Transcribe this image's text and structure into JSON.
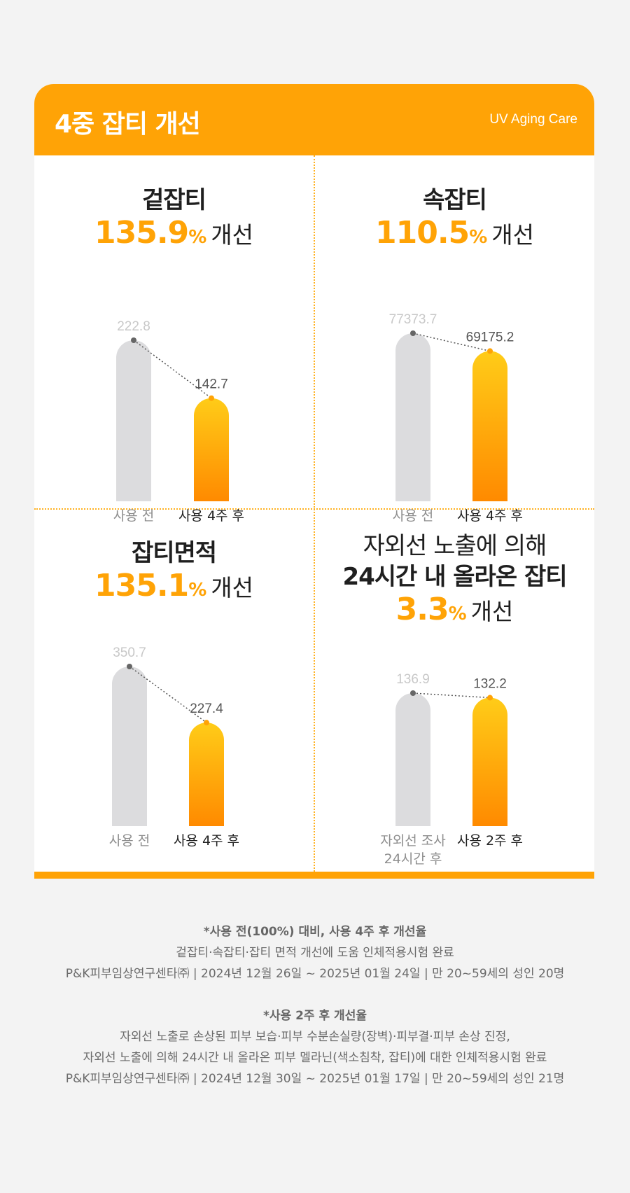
{
  "header": {
    "title": "4중 잡티 개선",
    "subtitle": "UV Aging Care"
  },
  "colors": {
    "accent": "#ffa306",
    "bar_before": "#dcdcde",
    "bar_after_top": "#ffcc18",
    "bar_after_bottom": "#ff8a00",
    "before_label": "#c8c8c8",
    "after_label": "#555555",
    "dot_before": "#666666",
    "dot_after": "#ffa306"
  },
  "chart_data": [
    {
      "type": "bar",
      "title": "겉잡티",
      "percent": "135.9",
      "percent_sign": "%",
      "improve_word": "개선",
      "categories": [
        "사용 전",
        "사용 4주 후"
      ],
      "values": [
        222.8,
        142.7
      ],
      "value_labels": [
        "222.8",
        "142.7"
      ]
    },
    {
      "type": "bar",
      "title": "속잡티",
      "percent": "110.5",
      "percent_sign": "%",
      "improve_word": "개선",
      "categories": [
        "사용 전",
        "사용 4주 후"
      ],
      "values": [
        77373.7,
        69175.2
      ],
      "value_labels": [
        "77373.7",
        "69175.2"
      ]
    },
    {
      "type": "bar",
      "title": "잡티면적",
      "percent": "135.1",
      "percent_sign": "%",
      "improve_word": "개선",
      "categories": [
        "사용 전",
        "사용 4주 후"
      ],
      "values": [
        350.7,
        227.4
      ],
      "value_labels": [
        "350.7",
        "227.4"
      ]
    },
    {
      "type": "bar",
      "title": "자외선 노출에 의해",
      "title_line2": "24시간 내 올라온 잡티",
      "percent": "3.3",
      "percent_sign": "%",
      "improve_word": "개선",
      "categories": [
        "자외선 조사\n24시간 후",
        "사용 2주 후"
      ],
      "values": [
        136.9,
        132.2
      ],
      "value_labels": [
        "136.9",
        "132.2"
      ]
    }
  ],
  "notes": {
    "block1_title": "*사용 전(100%) 대비, 사용 4주 후 개선율",
    "block1_line1": "겉잡티·속잡티·잡티 면적 개선에 도움 인체적용시험 완료",
    "block1_line2": "P&K피부임상연구센타㈜  | 2024년 12월 26일 ~ 2025년 01월 24일 | 만 20~59세의 성인 20명",
    "block2_title": "*사용 2주 후 개선율",
    "block2_line1": "자외선 노출로 손상된 피부 보습·피부 수분손실량(장벽)·피부결·피부 손상 진정,",
    "block2_line2": "자외선 노출에 의해 24시간 내 올라온 피부 멜라닌(색소침착, 잡티)에 대한 인체적용시험  완료",
    "block2_line3": "P&K피부임상연구센타㈜  | 2024년 12월 30일 ~ 2025년 01월 17일 | 만 20~59세의 성인 21명"
  }
}
